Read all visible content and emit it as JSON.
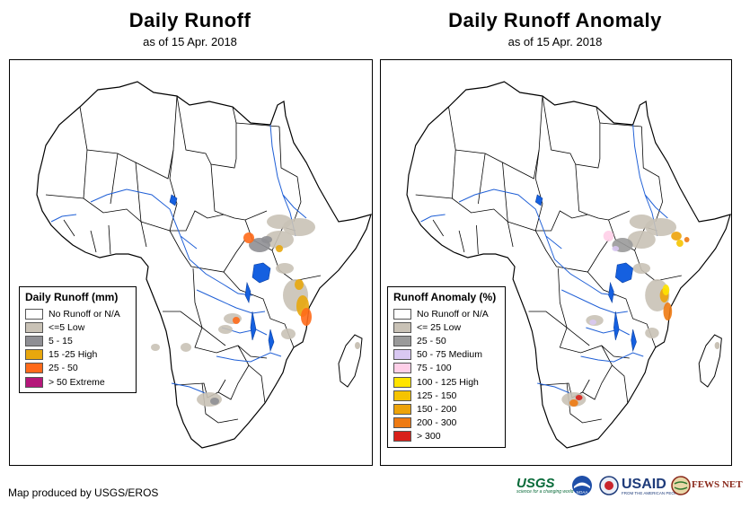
{
  "left_panel": {
    "title": "Daily Runoff",
    "subtitle": "as of 15 Apr. 2018",
    "legend": {
      "title": "Daily Runoff (mm)",
      "items": [
        {
          "label": "No Runoff or N/A",
          "color": "#ffffff"
        },
        {
          "label": "<=5 Low",
          "color": "#c9c2b6"
        },
        {
          "label": "5 - 15",
          "color": "#8f8f94"
        },
        {
          "label": "15 -25 High",
          "color": "#e8a70d"
        },
        {
          "label": "25 - 50",
          "color": "#ff6a1a"
        },
        {
          "label": "> 50 Extreme",
          "color": "#b5177a"
        }
      ]
    }
  },
  "right_panel": {
    "title": "Daily Runoff Anomaly",
    "subtitle": "as of 15 Apr. 2018",
    "legend": {
      "title": "Runoff Anomaly (%)",
      "items": [
        {
          "label": "No Runoff or N/A",
          "color": "#ffffff"
        },
        {
          "label": "<= 25 Low",
          "color": "#c9c2b6"
        },
        {
          "label": "25 - 50",
          "color": "#9a9a9a"
        },
        {
          "label": "50 - 75 Medium",
          "color": "#d9c8f2"
        },
        {
          "label": "75 - 100",
          "color": "#ffcfe8"
        },
        {
          "label": "100 - 125 High",
          "color": "#ffe400"
        },
        {
          "label": "125 - 150",
          "color": "#f5c400"
        },
        {
          "label": "150 - 200",
          "color": "#eda30a"
        },
        {
          "label": "200 - 300",
          "color": "#ee7a12"
        },
        {
          "label": "> 300",
          "color": "#d8201a"
        }
      ]
    }
  },
  "footer": {
    "credit": "Map produced by USGS/EROS"
  },
  "logos": {
    "usgs": "USGS",
    "usgs_tagline": "science for a changing world",
    "noaa": "NOAA",
    "usaid": "USAID",
    "usaid_tagline": "FROM THE AMERICAN PEOPLE",
    "fewsnet": "FEWS NET"
  },
  "colors": {
    "river": "#1f5fd6",
    "lake": "#1560e0",
    "border": "#000000"
  }
}
